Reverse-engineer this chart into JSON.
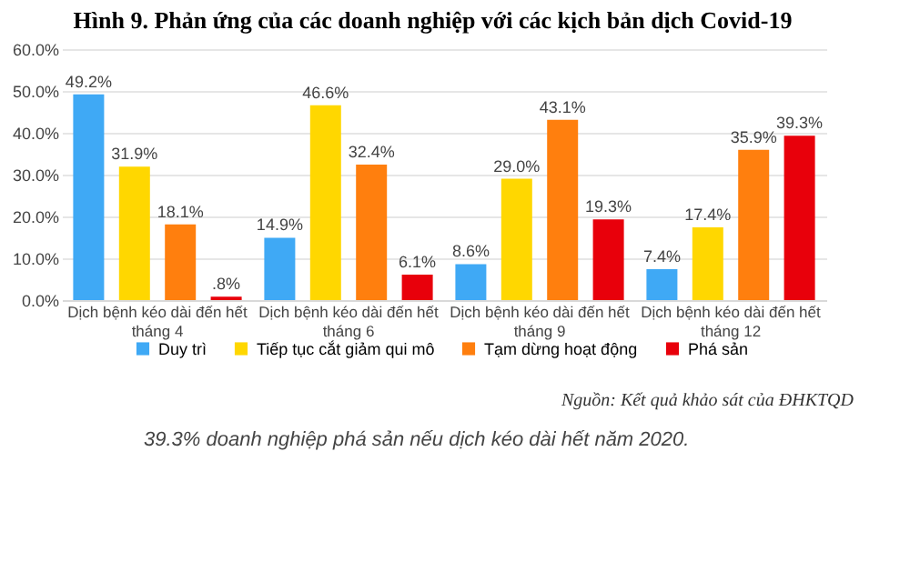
{
  "chart_data": {
    "type": "bar",
    "title": "Hình 9. Phản ứng của các doanh nghiệp với các kịch bản dịch Covid-19",
    "categories": [
      "Dịch bệnh kéo dài đến hết tháng 4",
      "Dịch bệnh kéo dài đến hết tháng 6",
      "Dịch bệnh kéo dài đến hết tháng 9",
      "Dịch bệnh kéo dài đến hết tháng 12"
    ],
    "series": [
      {
        "name": "Duy trì",
        "color": "#3fa9f5",
        "values": [
          49.2,
          14.9,
          8.6,
          7.4
        ],
        "value_labels": [
          "49.2%",
          "14.9%",
          "8.6%",
          "7.4%"
        ]
      },
      {
        "name": "Tiếp tục cắt giảm qui mô",
        "color": "#ffd700",
        "values": [
          31.9,
          46.6,
          29.0,
          17.4
        ],
        "value_labels": [
          "31.9%",
          "46.6%",
          "29.0%",
          "17.4%"
        ]
      },
      {
        "name": "Tạm dừng hoạt động",
        "color": "#ff7f0e",
        "values": [
          18.1,
          32.4,
          43.1,
          35.9
        ],
        "value_labels": [
          "18.1%",
          "32.4%",
          "43.1%",
          "35.9%"
        ]
      },
      {
        "name": "Phá sản",
        "color": "#e8000b",
        "values": [
          0.8,
          6.1,
          19.3,
          39.3
        ],
        "value_labels": [
          ".8%",
          "6.1%",
          "19.3%",
          "39.3%"
        ]
      }
    ],
    "ylim": [
      0,
      60
    ],
    "yticks": [
      {
        "value": 0,
        "label": "0.0%"
      },
      {
        "value": 10,
        "label": "10.0%"
      },
      {
        "value": 20,
        "label": "20.0%"
      },
      {
        "value": 30,
        "label": "30.0%"
      },
      {
        "value": 40,
        "label": "40.0%"
      },
      {
        "value": 50,
        "label": "50.0%"
      },
      {
        "value": 60,
        "label": "60.0%"
      }
    ],
    "grid": "y",
    "legend": "bottom",
    "annotations": [
      "Nguồn: Kết quả khảo sát của ĐHKTQD",
      "39.3% doanh nghiệp phá sản nếu dịch kéo dài hết năm 2020."
    ]
  }
}
